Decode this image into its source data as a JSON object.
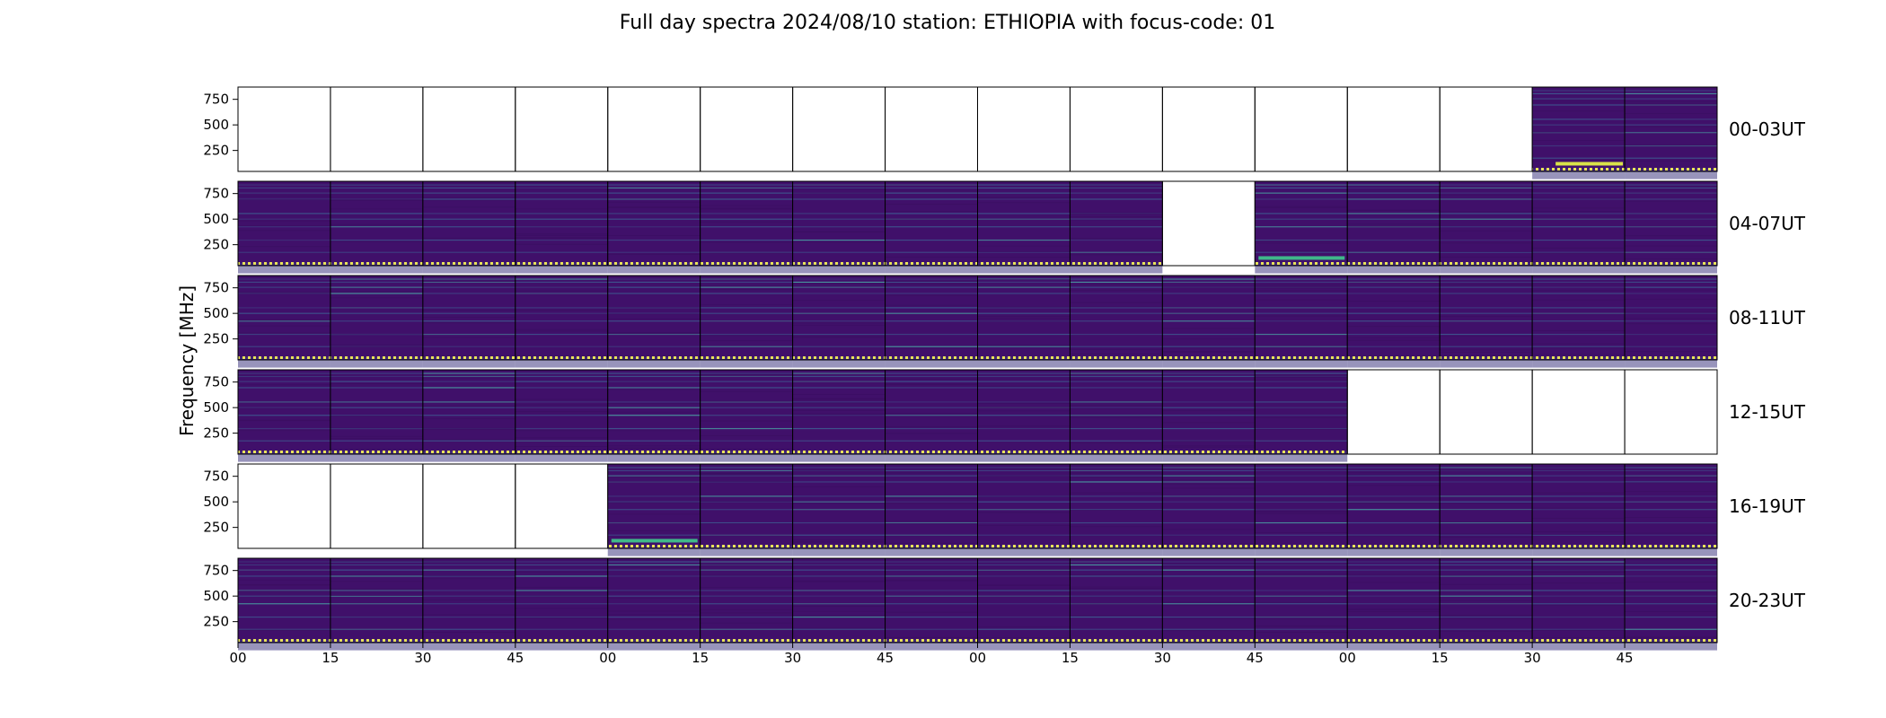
{
  "chart_data": {
    "type": "heatmap",
    "title": "Full day spectra 2024/08/10 station: ETHIOPIA with focus-code: 01",
    "ylabel": "Frequency [MHz]",
    "xlabel": "",
    "y_ticks": [
      "750",
      "500",
      "250"
    ],
    "x_ticks": [
      "00",
      "15",
      "30",
      "45",
      "00",
      "15",
      "30",
      "45",
      "00",
      "15",
      "30",
      "45",
      "00",
      "15",
      "30",
      "45"
    ],
    "colormap": "viridis",
    "panels_per_row": 16,
    "minutes_per_panel": 15,
    "rows": [
      {
        "label": "00-03UT",
        "present": [
          0,
          0,
          0,
          0,
          0,
          0,
          0,
          0,
          0,
          0,
          0,
          0,
          0,
          0,
          1,
          1
        ],
        "bands": [
          {
            "panel": 14,
            "freq_mhz": 120,
            "level": "high"
          }
        ]
      },
      {
        "label": "04-07UT",
        "present": [
          1,
          1,
          1,
          1,
          1,
          1,
          1,
          1,
          1,
          1,
          0,
          1,
          1,
          1,
          1,
          1
        ],
        "bands": [
          {
            "panel": 11,
            "freq_mhz": 120,
            "level": "mid"
          }
        ]
      },
      {
        "label": "08-11UT",
        "present": [
          1,
          1,
          1,
          1,
          1,
          1,
          1,
          1,
          1,
          1,
          1,
          1,
          1,
          1,
          1,
          1
        ],
        "bands": []
      },
      {
        "label": "12-15UT",
        "present": [
          1,
          1,
          1,
          1,
          1,
          1,
          1,
          1,
          1,
          1,
          1,
          1,
          0,
          0,
          0,
          0
        ],
        "bands": []
      },
      {
        "label": "16-19UT",
        "present": [
          0,
          0,
          0,
          0,
          1,
          1,
          1,
          1,
          1,
          1,
          1,
          1,
          1,
          1,
          1,
          1
        ],
        "bands": [
          {
            "panel": 4,
            "freq_mhz": 120,
            "level": "mid"
          }
        ]
      },
      {
        "label": "20-23UT",
        "present": [
          1,
          1,
          1,
          1,
          1,
          1,
          1,
          1,
          1,
          1,
          1,
          1,
          1,
          1,
          1,
          1
        ],
        "bands": []
      }
    ],
    "colors": {
      "background": "#40106a",
      "dark": "#3b0f60",
      "line": "#3e5f93",
      "line_bright": "#4aa8a6",
      "high": "#d8e24a",
      "mid": "#3fb88a",
      "dots": "#e8e35a"
    }
  }
}
